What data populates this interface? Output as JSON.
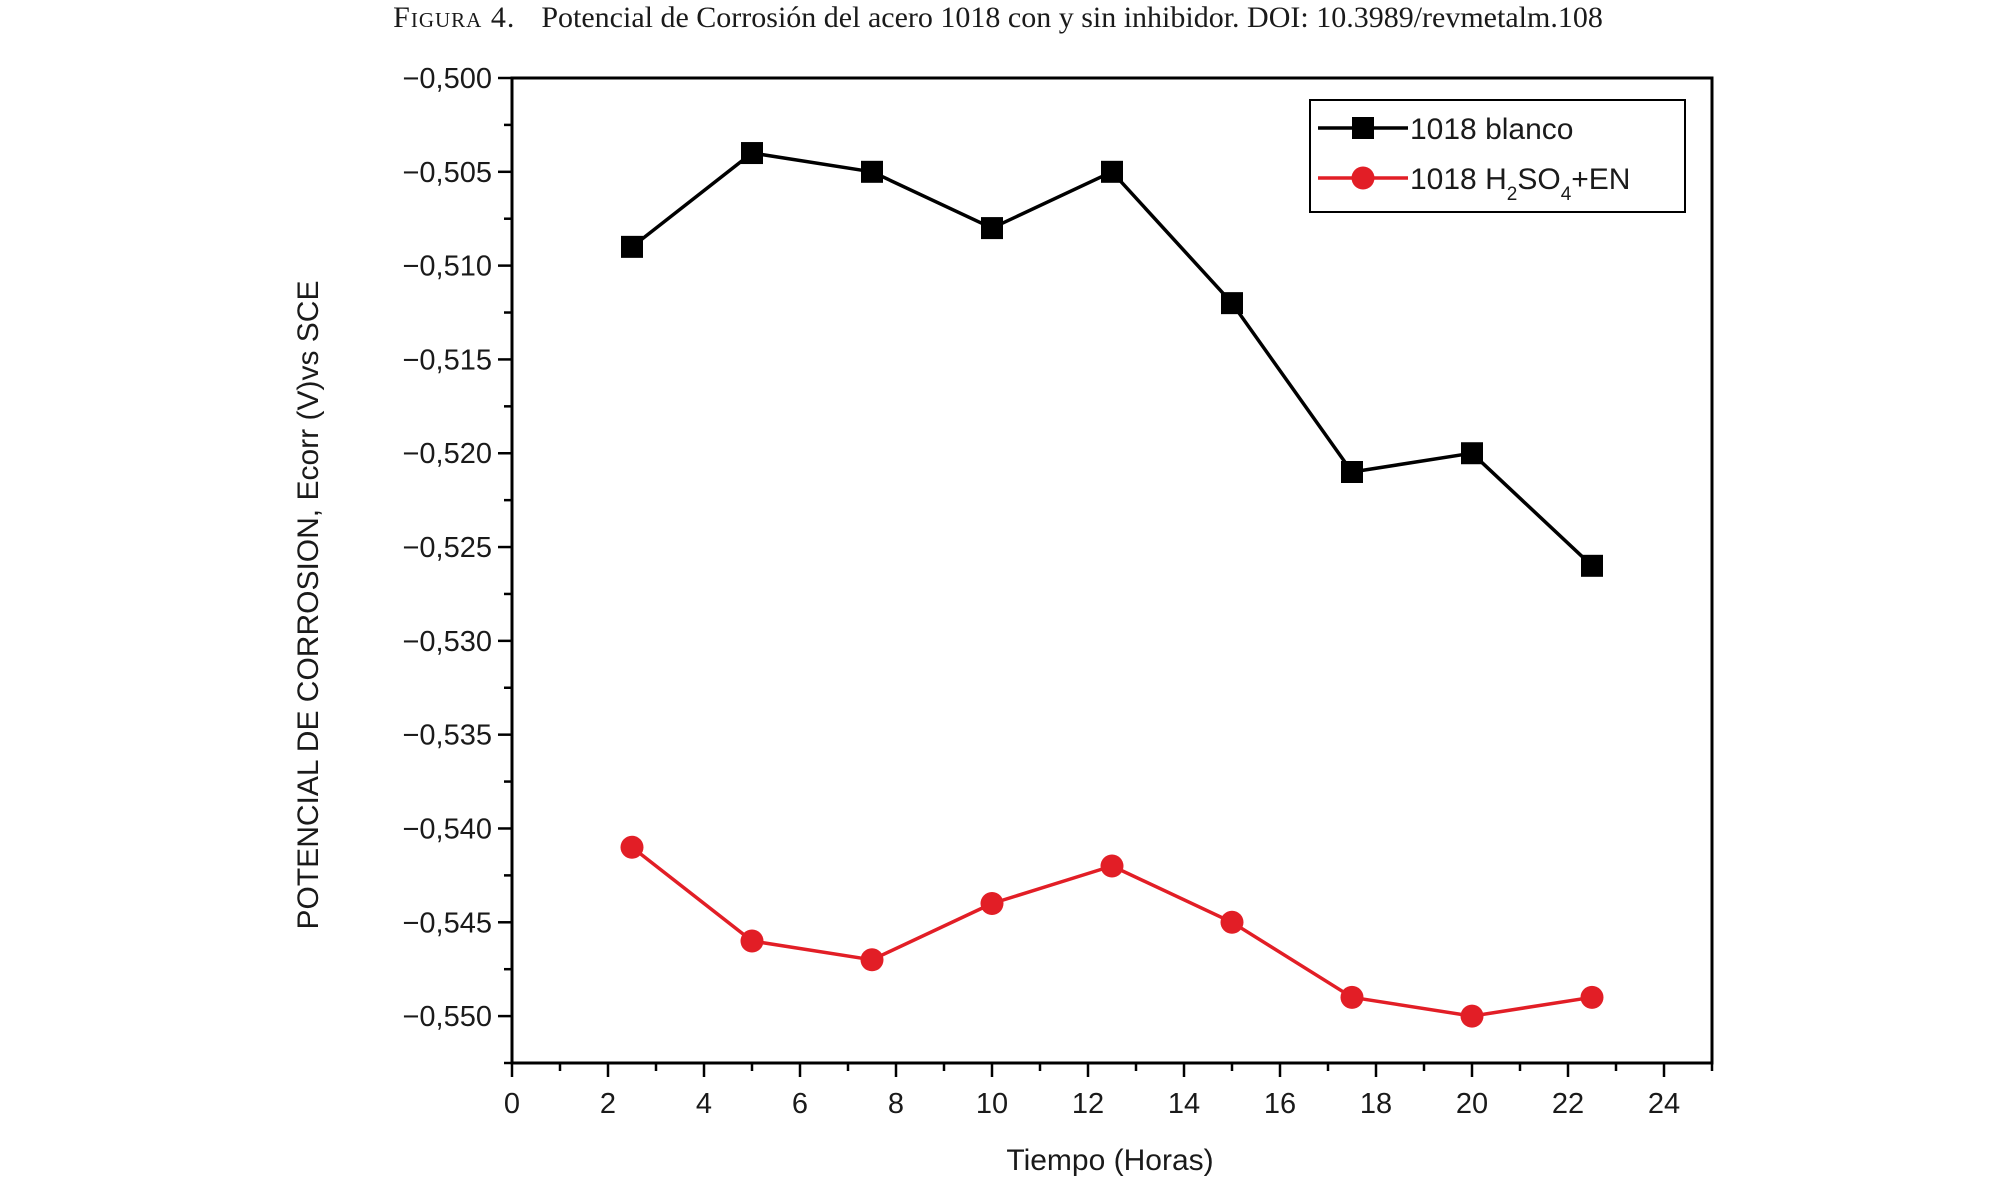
{
  "caption": {
    "label": "Figura 4.",
    "text": "Potencial de Corrosión del acero 1018 con y sin inhibidor. DOI: 10.3989/revmetalm.108"
  },
  "chart_data": {
    "type": "line",
    "title": "",
    "xlabel": "Tiempo (Horas)",
    "ylabel": "POTENCIAL DE CORROSION, Ecorr (V)vs SCE",
    "xlim": [
      0,
      25
    ],
    "ylim": [
      -0.5525,
      -0.5
    ],
    "x_ticks": [
      "0",
      "2",
      "4",
      "6",
      "8",
      "10",
      "12",
      "14",
      "16",
      "18",
      "20",
      "22",
      "24"
    ],
    "y_ticks": [
      "−0,500",
      "−0,505",
      "−0,510",
      "−0,515",
      "−0,520",
      "−0,525",
      "−0,530",
      "−0,535",
      "−0,540",
      "−0,545",
      "−0,550"
    ],
    "grid": false,
    "legend_position": "top-right",
    "x": [
      2.5,
      5,
      7.5,
      10,
      12.5,
      15,
      17.5,
      20,
      22.5
    ],
    "series": [
      {
        "name": "1018 blanco",
        "legend": {
          "main": "1018 blanco",
          "parts": []
        },
        "marker": "square",
        "color": "#000000",
        "values": [
          -0.509,
          -0.504,
          -0.505,
          -0.508,
          -0.505,
          -0.512,
          -0.521,
          -0.52,
          -0.526
        ]
      },
      {
        "name": "1018 H2SO4+EN",
        "legend": {
          "main": "1018 H",
          "parts": [
            {
              "sub": "2"
            },
            {
              "text": "SO"
            },
            {
              "sub": "4"
            },
            {
              "text": "+EN"
            }
          ]
        },
        "marker": "circle",
        "color": "#e21e26",
        "values": [
          -0.541,
          -0.546,
          -0.547,
          -0.544,
          -0.542,
          -0.545,
          -0.549,
          -0.55,
          -0.549
        ]
      }
    ]
  }
}
